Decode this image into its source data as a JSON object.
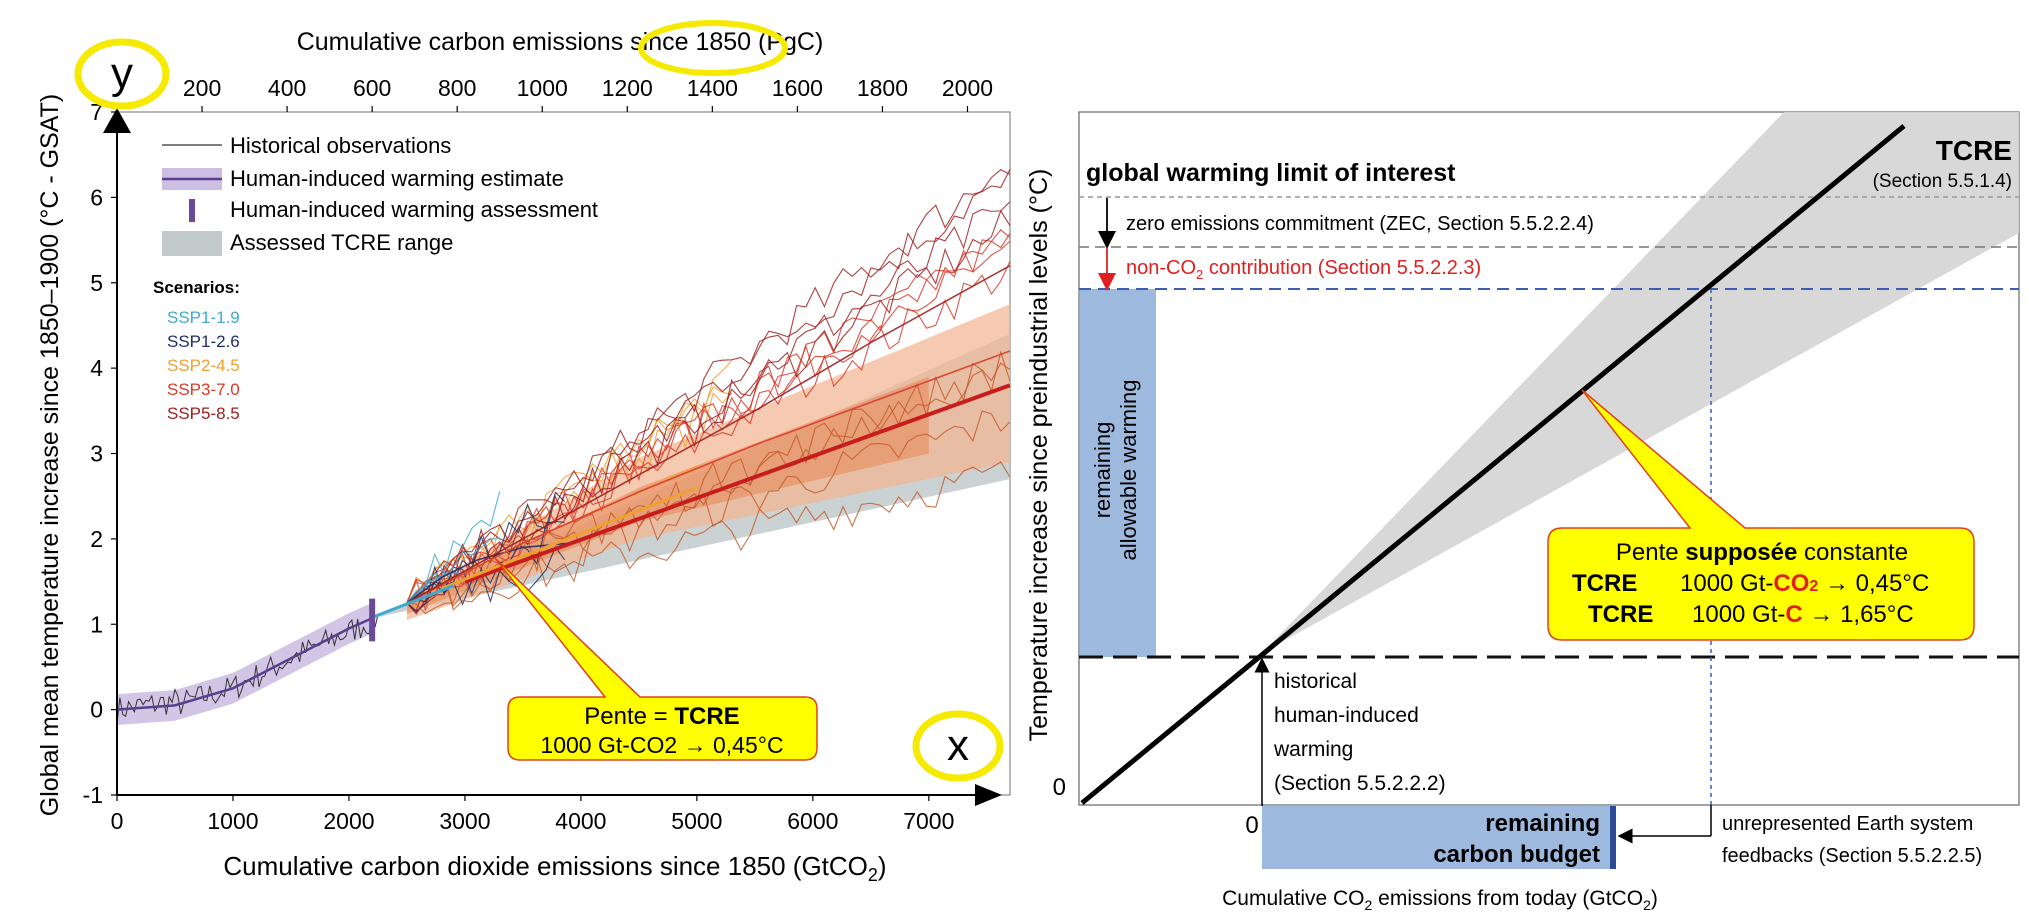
{
  "chart_data": [
    {
      "type": "line",
      "xlabel": "Cumulative carbon dioxide emissions since 1850 (GtCO",
      "xlabel_sub": "2",
      "xlabel_end": ")",
      "ylabel": "Global mean temperature increase since 1850–1900 (°C - GSAT)",
      "top_xlabel": "Cumulative carbon emissions since 1850 (PgC)",
      "xlim": [
        0,
        7700
      ],
      "ylim": [
        -1,
        7
      ],
      "top_xlim": [
        0,
        2100
      ],
      "x_ticks": [
        "0",
        "1000",
        "2000",
        "3000",
        "4000",
        "5000",
        "6000",
        "7000"
      ],
      "y_ticks": [
        "-1",
        "0",
        "1",
        "2",
        "3",
        "4",
        "5",
        "6",
        "7"
      ],
      "top_ticks": [
        "200",
        "400",
        "600",
        "800",
        "1000",
        "1200",
        "1400",
        "1600",
        "1800",
        "2000"
      ],
      "legend": {
        "placement": "top-left",
        "entries": [
          "Historical observations",
          "Human-induced warming estimate",
          "Human-induced warming assessment",
          "Assessed TCRE range"
        ]
      },
      "scenarios_title": "Scenarios:",
      "series": [
        {
          "name": "SSP1-1.9",
          "color": "#3fa9cf",
          "x": [
            2500,
            2700,
            2850,
            2950
          ],
          "y": [
            1.25,
            1.5,
            1.6,
            1.6
          ]
        },
        {
          "name": "SSP1-2.6",
          "color": "#1f2f66",
          "x": [
            2500,
            2800,
            3100,
            3500,
            3900
          ],
          "y": [
            1.25,
            1.55,
            1.75,
            1.9,
            1.95
          ]
        },
        {
          "name": "SSP2-4.5",
          "color": "#f0a030",
          "x": [
            2500,
            3000,
            3500,
            4000,
            4500,
            5000
          ],
          "y": [
            1.25,
            1.6,
            1.95,
            2.25,
            2.55,
            2.85
          ]
        },
        {
          "name": "SSP3-7.0",
          "color": "#d83a2a",
          "x": [
            2500,
            3500,
            4500,
            5500,
            6500,
            7700
          ],
          "y": [
            1.25,
            1.95,
            2.55,
            3.1,
            3.6,
            4.2
          ]
        },
        {
          "name": "SSP5-8.5",
          "color": "#a02020",
          "x": [
            2500,
            3500,
            4500,
            5500,
            6500,
            7700
          ],
          "y": [
            1.25,
            2.0,
            2.75,
            3.5,
            4.3,
            5.2
          ]
        }
      ],
      "estimate": {
        "x": [
          0,
          500,
          1000,
          1500,
          2000,
          2200
        ],
        "y": [
          0,
          0.05,
          0.25,
          0.6,
          0.95,
          1.07
        ]
      },
      "assessment": {
        "x": 2200,
        "y_range": [
          0.8,
          1.3
        ]
      },
      "tcre_range": {
        "x_end": 7700,
        "y_low_end": 2.7,
        "y_high_end": 4.4
      },
      "central": {
        "x": [
          2200,
          7700
        ],
        "y": [
          1.07,
          3.8
        ]
      },
      "callout": {
        "line1": "Pente = ",
        "line1_bold": "TCRE",
        "line2": "1000 Gt-CO2 → 0,45°C"
      },
      "corner_labels": {
        "y": "y",
        "x": "x"
      },
      "highlight": "since 1850"
    },
    {
      "type": "line",
      "ylabel": "Temperature increase since preindustrial levels (°C)",
      "xlabel_a": "Cumulative CO",
      "xlabel_sub": "2",
      "xlabel_b": " emissions from today (GtCO",
      "xlabel_end": ")",
      "zero_y": "0",
      "zero_x": "0",
      "tcre": "TCRE",
      "tcre_ref": "(Section 5.5.1.4)",
      "limit_label": "global warming limit of interest",
      "zec_label": "zero emissions commitment (ZEC, Section 5.5.2.2.4)",
      "nonco2_a": "non-CO",
      "nonco2_sub": "2",
      "nonco2_b": " contribution (Section 5.5.2.2.3)",
      "remaining_warming_1": "remaining",
      "remaining_warming_2": "allowable warming",
      "historical": [
        "historical",
        "human-induced",
        "warming",
        "(Section 5.5.2.2.2)"
      ],
      "budget_1": "remaining",
      "budget_2": "carbon budget",
      "feedbacks_1": "unrepresented Earth system",
      "feedbacks_2": "feedbacks (Section 5.5.2.2.5)",
      "callout": {
        "pre": "Pente ",
        "bold": "supposée",
        "post": " constante",
        "row1_a": "TCRE",
        "row1_b": "1000 Gt-",
        "row1_c": "CO",
        "row1_sub": "2",
        "row1_d": " → 0,45°C",
        "row2_a": "TCRE",
        "row2_b": "1000 Gt-",
        "row2_c": "C",
        "row2_d": " → 1,65°C"
      },
      "colors": {
        "budget": "#9db9de",
        "budget_edge": "#2c4a96",
        "red": "#e02020",
        "blue_dash": "#3a5fb0"
      }
    }
  ]
}
